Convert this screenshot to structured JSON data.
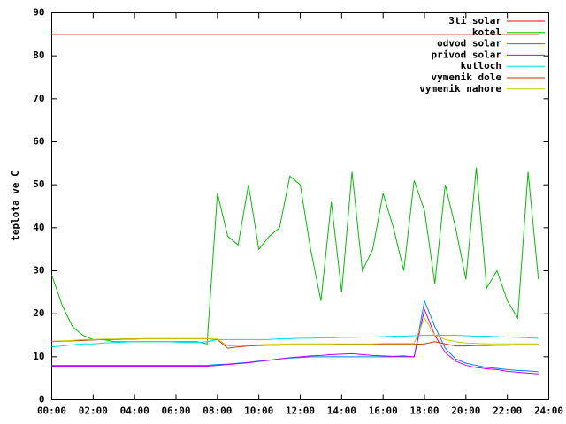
{
  "chart_data": {
    "type": "line",
    "y_label": "teplota ve C",
    "x": [
      0,
      0.5,
      1,
      1.5,
      2,
      2.5,
      3,
      3.5,
      4,
      4.5,
      5,
      5.5,
      6,
      6.5,
      7,
      7.5,
      8,
      8.5,
      9,
      9.5,
      10,
      10.5,
      11,
      11.5,
      12,
      12.5,
      13,
      13.5,
      14,
      14.5,
      15,
      15.5,
      16,
      16.5,
      17,
      17.5,
      18,
      18.5,
      19,
      19.5,
      20,
      20.5,
      21,
      21.5,
      22,
      22.5,
      23,
      23.5
    ],
    "xlim": [
      0,
      24
    ],
    "xticks": [
      {
        "value": 0,
        "label": "00:00"
      },
      {
        "value": 2,
        "label": "02:00"
      },
      {
        "value": 4,
        "label": "04:00"
      },
      {
        "value": 6,
        "label": "06:00"
      },
      {
        "value": 8,
        "label": "08:00"
      },
      {
        "value": 10,
        "label": "10:00"
      },
      {
        "value": 12,
        "label": "12:00"
      },
      {
        "value": 14,
        "label": "14:00"
      },
      {
        "value": 16,
        "label": "16:00"
      },
      {
        "value": 18,
        "label": "18:00"
      },
      {
        "value": 20,
        "label": "20:00"
      },
      {
        "value": 22,
        "label": "22:00"
      },
      {
        "value": 24,
        "label": "24:00"
      }
    ],
    "ylim": [
      0,
      90
    ],
    "yticks": [
      0,
      10,
      20,
      30,
      40,
      50,
      60,
      70,
      80,
      90
    ],
    "grid": false,
    "legend": "top-right",
    "series": [
      {
        "name": "3ti solar",
        "color": "#ff0000",
        "values": [
          85,
          85,
          85,
          85,
          85,
          85,
          85,
          85,
          85,
          85,
          85,
          85,
          85,
          85,
          85,
          85,
          85,
          85,
          85,
          85,
          85,
          85,
          85,
          85,
          85,
          85,
          85,
          85,
          85,
          85,
          85,
          85,
          85,
          85,
          85,
          85,
          85,
          85,
          85,
          85,
          85,
          85,
          85,
          85,
          85,
          85,
          85,
          85
        ]
      },
      {
        "name": "kotel",
        "color": "#00c000",
        "values": [
          29,
          22,
          17,
          15,
          14,
          14,
          13.5,
          13.5,
          13.5,
          13.5,
          13.5,
          13.5,
          13.5,
          13.5,
          13.5,
          13,
          48,
          38,
          36,
          50,
          35,
          38,
          40,
          52,
          50,
          35,
          23,
          46,
          25,
          53,
          30,
          35,
          48,
          40,
          30,
          51,
          44,
          27,
          50,
          40,
          28,
          54,
          26,
          30,
          23,
          19,
          53,
          28
        ]
      },
      {
        "name": "odvod solar",
        "color": "#0080ff",
        "values": [
          8,
          8,
          8,
          8,
          8,
          8,
          8,
          8,
          8,
          8,
          8,
          8,
          8,
          8,
          8,
          8,
          8.2,
          8.3,
          8.5,
          8.7,
          9,
          9.2,
          9.5,
          9.7,
          9.8,
          10,
          10,
          10,
          10,
          10,
          10,
          10,
          10,
          10,
          10,
          10,
          23,
          17,
          12,
          9.5,
          8.5,
          8,
          7.5,
          7.3,
          7,
          6.8,
          6.7,
          6.5
        ]
      },
      {
        "name": "privod solar",
        "color": "#c000ff",
        "values": [
          7.8,
          7.8,
          7.8,
          7.8,
          7.8,
          7.8,
          7.8,
          7.8,
          7.8,
          7.8,
          7.8,
          7.8,
          7.8,
          7.8,
          7.8,
          7.8,
          8,
          8.2,
          8.4,
          8.6,
          8.9,
          9.2,
          9.5,
          9.8,
          10,
          10.2,
          10.3,
          10.5,
          10.6,
          10.7,
          10.5,
          10.3,
          10.2,
          10.1,
          10.2,
          10,
          21,
          15,
          11,
          9,
          8,
          7.5,
          7.2,
          7,
          6.6,
          6.4,
          6.2,
          6
        ]
      },
      {
        "name": "kutloch",
        "color": "#00e0e0",
        "values": [
          12.3,
          12.5,
          12.8,
          13,
          13,
          13.2,
          13.3,
          13.4,
          13.5,
          13.5,
          13.5,
          13.5,
          13.4,
          13.3,
          13.3,
          13.5,
          14,
          14,
          14,
          14,
          14,
          14,
          14.2,
          14.2,
          14.3,
          14.3,
          14.4,
          14.4,
          14.5,
          14.5,
          14.6,
          14.6,
          14.7,
          14.8,
          14.8,
          14.9,
          15,
          15,
          15,
          15,
          14.9,
          14.8,
          14.8,
          14.7,
          14.6,
          14.5,
          14.4,
          14.3
        ]
      },
      {
        "name": "vymenik dole",
        "color": "#c04000",
        "values": [
          13.5,
          13.6,
          13.7,
          13.8,
          13.9,
          14,
          14,
          14.1,
          14.1,
          14.2,
          14.2,
          14.2,
          14.2,
          14.2,
          14.2,
          14.2,
          14,
          12,
          12.3,
          12.5,
          12.6,
          12.7,
          12.7,
          12.8,
          12.8,
          12.8,
          12.8,
          12.8,
          12.9,
          12.9,
          12.9,
          12.9,
          12.9,
          12.9,
          12.9,
          12.9,
          13,
          13.5,
          13,
          12.5,
          12.5,
          12.6,
          12.6,
          12.7,
          12.7,
          12.8,
          12.8,
          12.8
        ]
      },
      {
        "name": "vymenik nahore",
        "color": "#c8c800",
        "values": [
          13.6,
          13.7,
          13.8,
          14,
          14,
          14.1,
          14.1,
          14.2,
          14.2,
          14.2,
          14.2,
          14.2,
          14.2,
          14.2,
          14.2,
          14.2,
          14.1,
          12.5,
          12.6,
          12.7,
          12.8,
          12.9,
          12.9,
          13,
          13,
          13,
          13,
          13,
          13,
          13,
          13,
          13,
          13.1,
          13.1,
          13.1,
          13.1,
          19,
          15,
          14,
          13.5,
          13.2,
          13.1,
          13,
          13,
          13,
          13,
          13,
          13
        ]
      }
    ]
  }
}
